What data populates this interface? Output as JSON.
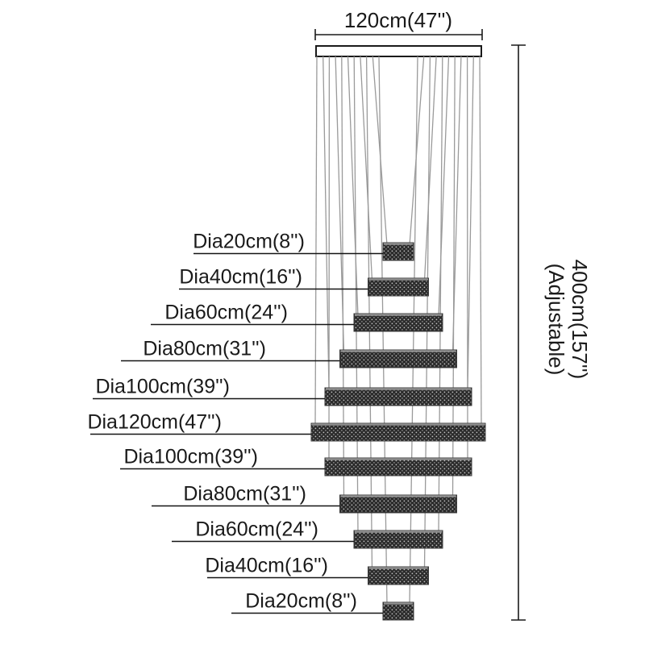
{
  "diagram": {
    "top_dimension": {
      "label": "120cm(47'')"
    },
    "height_dimension": {
      "line1": "400cm(157'')",
      "line2": "(Adjustable)"
    },
    "tiers": [
      {
        "label": "Dia20cm(8'')",
        "diameter_cm": 20,
        "diameter_in": 8
      },
      {
        "label": "Dia40cm(16'')",
        "diameter_cm": 40,
        "diameter_in": 16
      },
      {
        "label": "Dia60cm(24'')",
        "diameter_cm": 60,
        "diameter_in": 24
      },
      {
        "label": "Dia80cm(31'')",
        "diameter_cm": 80,
        "diameter_in": 31
      },
      {
        "label": "Dia100cm(39'')",
        "diameter_cm": 100,
        "diameter_in": 39
      },
      {
        "label": "Dia120cm(47'')",
        "diameter_cm": 120,
        "diameter_in": 47
      },
      {
        "label": "Dia100cm(39'')",
        "diameter_cm": 100,
        "diameter_in": 39
      },
      {
        "label": "Dia80cm(31'')",
        "diameter_cm": 80,
        "diameter_in": 31
      },
      {
        "label": "Dia60cm(24'')",
        "diameter_cm": 60,
        "diameter_in": 24
      },
      {
        "label": "Dia40cm(16'')",
        "diameter_cm": 40,
        "diameter_in": 16
      },
      {
        "label": "Dia20cm(8'')",
        "diameter_cm": 20,
        "diameter_in": 8
      }
    ],
    "colors": {
      "line": "#1a1a1a",
      "cable": "#9a9a9a",
      "tier_dark": "#2b2b2b",
      "tier_dot_light": "#c0c0c0",
      "background": "#ffffff"
    }
  }
}
